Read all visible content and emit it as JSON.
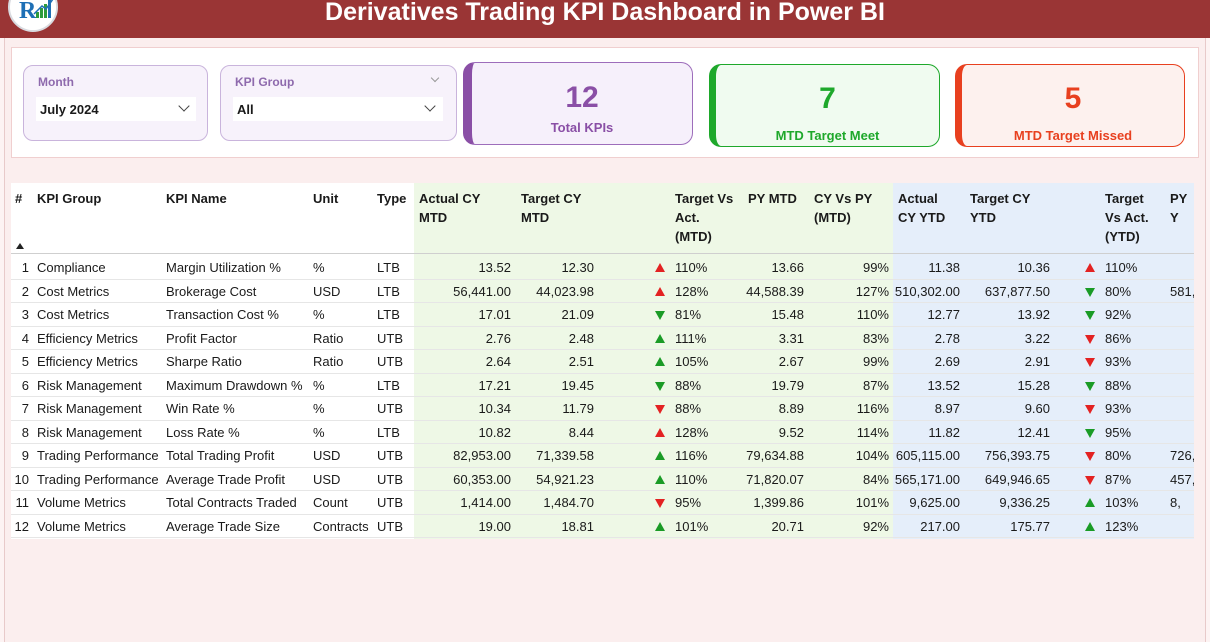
{
  "header": {
    "title": "Derivatives Trading KPI Dashboard in Power BI",
    "logo_icon": "brand-logo-icon"
  },
  "slicers": {
    "month": {
      "label": "Month",
      "value": "July 2024"
    },
    "kpi_group": {
      "label": "KPI Group",
      "value": "All"
    }
  },
  "cards": [
    {
      "value": "12",
      "label": "Total KPIs",
      "color": "#8a4fa6"
    },
    {
      "value": "7",
      "label": "MTD Target Meet",
      "color": "#1ea82b"
    },
    {
      "value": "5",
      "label": "MTD Target Missed",
      "color": "#e8401f"
    }
  ],
  "colors": {
    "title_bar": "#9a3535",
    "mtd_band": "#eef8e6",
    "ytd_band": "#e5eefa",
    "up_red": "#e32222",
    "down_green": "#1a9b26",
    "up_green": "#1a9b26",
    "down_red": "#e32222"
  },
  "table": {
    "headers": {
      "idx": "#",
      "group": "KPI Group",
      "name": "KPI Name",
      "unit": "Unit",
      "type": "Type",
      "actual_mtd": [
        "Actual CY",
        "MTD"
      ],
      "target_mtd": [
        "Target CY",
        "MTD"
      ],
      "tva_mtd": [
        "Target Vs",
        "Act.",
        "(MTD)"
      ],
      "py_mtd": "PY MTD",
      "cyvpy_mtd": [
        "CY Vs PY",
        "(MTD)"
      ],
      "actual_ytd": [
        "Actual",
        "CY YTD"
      ],
      "target_ytd": [
        "Target CY",
        "YTD"
      ],
      "tva_ytd": [
        "Target",
        "Vs Act.",
        "(YTD)"
      ],
      "py_ytd": "PY Y"
    },
    "rows": [
      {
        "idx": "1",
        "group": "Compliance",
        "name": "Margin Utilization %",
        "unit": "%",
        "type": "LTB",
        "actual_mtd": "13.52",
        "target_mtd": "12.30",
        "mtd_icon": "up-red",
        "tva_mtd": "110%",
        "py_mtd": "13.66",
        "cyvpy_mtd": "99%",
        "actual_ytd": "11.38",
        "target_ytd": "10.36",
        "ytd_icon": "up-red",
        "tva_ytd": "110%",
        "py_ytd": ""
      },
      {
        "idx": "2",
        "group": "Cost Metrics",
        "name": "Brokerage Cost",
        "unit": "USD",
        "type": "LTB",
        "actual_mtd": "56,441.00",
        "target_mtd": "44,023.98",
        "mtd_icon": "up-red",
        "tva_mtd": "128%",
        "py_mtd": "44,588.39",
        "cyvpy_mtd": "127%",
        "actual_ytd": "510,302.00",
        "target_ytd": "637,877.50",
        "ytd_icon": "down-green",
        "tva_ytd": "80%",
        "py_ytd": "581,"
      },
      {
        "idx": "3",
        "group": "Cost Metrics",
        "name": "Transaction Cost %",
        "unit": "%",
        "type": "LTB",
        "actual_mtd": "17.01",
        "target_mtd": "21.09",
        "mtd_icon": "down-green",
        "tva_mtd": "81%",
        "py_mtd": "15.48",
        "cyvpy_mtd": "110%",
        "actual_ytd": "12.77",
        "target_ytd": "13.92",
        "ytd_icon": "down-green",
        "tva_ytd": "92%",
        "py_ytd": ""
      },
      {
        "idx": "4",
        "group": "Efficiency Metrics",
        "name": "Profit Factor",
        "unit": "Ratio",
        "type": "UTB",
        "actual_mtd": "2.76",
        "target_mtd": "2.48",
        "mtd_icon": "up-green",
        "tva_mtd": "111%",
        "py_mtd": "3.31",
        "cyvpy_mtd": "83%",
        "actual_ytd": "2.78",
        "target_ytd": "3.22",
        "ytd_icon": "down-red",
        "tva_ytd": "86%",
        "py_ytd": ""
      },
      {
        "idx": "5",
        "group": "Efficiency Metrics",
        "name": "Sharpe Ratio",
        "unit": "Ratio",
        "type": "UTB",
        "actual_mtd": "2.64",
        "target_mtd": "2.51",
        "mtd_icon": "up-green",
        "tva_mtd": "105%",
        "py_mtd": "2.67",
        "cyvpy_mtd": "99%",
        "actual_ytd": "2.69",
        "target_ytd": "2.91",
        "ytd_icon": "down-red",
        "tva_ytd": "93%",
        "py_ytd": ""
      },
      {
        "idx": "6",
        "group": "Risk Management",
        "name": "Maximum Drawdown %",
        "unit": "%",
        "type": "LTB",
        "actual_mtd": "17.21",
        "target_mtd": "19.45",
        "mtd_icon": "down-green",
        "tva_mtd": "88%",
        "py_mtd": "19.79",
        "cyvpy_mtd": "87%",
        "actual_ytd": "13.52",
        "target_ytd": "15.28",
        "ytd_icon": "down-green",
        "tva_ytd": "88%",
        "py_ytd": ""
      },
      {
        "idx": "7",
        "group": "Risk Management",
        "name": "Win Rate %",
        "unit": "%",
        "type": "UTB",
        "actual_mtd": "10.34",
        "target_mtd": "11.79",
        "mtd_icon": "down-red",
        "tva_mtd": "88%",
        "py_mtd": "8.89",
        "cyvpy_mtd": "116%",
        "actual_ytd": "8.97",
        "target_ytd": "9.60",
        "ytd_icon": "down-red",
        "tva_ytd": "93%",
        "py_ytd": ""
      },
      {
        "idx": "8",
        "group": "Risk Management",
        "name": "Loss Rate %",
        "unit": "%",
        "type": "LTB",
        "actual_mtd": "10.82",
        "target_mtd": "8.44",
        "mtd_icon": "up-red",
        "tva_mtd": "128%",
        "py_mtd": "9.52",
        "cyvpy_mtd": "114%",
        "actual_ytd": "11.82",
        "target_ytd": "12.41",
        "ytd_icon": "down-green",
        "tva_ytd": "95%",
        "py_ytd": ""
      },
      {
        "idx": "9",
        "group": "Trading Performance",
        "name": "Total Trading Profit",
        "unit": "USD",
        "type": "UTB",
        "actual_mtd": "82,953.00",
        "target_mtd": "71,339.58",
        "mtd_icon": "up-green",
        "tva_mtd": "116%",
        "py_mtd": "79,634.88",
        "cyvpy_mtd": "104%",
        "actual_ytd": "605,115.00",
        "target_ytd": "756,393.75",
        "ytd_icon": "down-red",
        "tva_ytd": "80%",
        "py_ytd": "726,"
      },
      {
        "idx": "10",
        "group": "Trading Performance",
        "name": "Average Trade Profit",
        "unit": "USD",
        "type": "UTB",
        "actual_mtd": "60,353.00",
        "target_mtd": "54,921.23",
        "mtd_icon": "up-green",
        "tva_mtd": "110%",
        "py_mtd": "71,820.07",
        "cyvpy_mtd": "84%",
        "actual_ytd": "565,171.00",
        "target_ytd": "649,946.65",
        "ytd_icon": "down-red",
        "tva_ytd": "87%",
        "py_ytd": "457,"
      },
      {
        "idx": "11",
        "group": "Volume Metrics",
        "name": "Total Contracts Traded",
        "unit": "Count",
        "type": "UTB",
        "actual_mtd": "1,414.00",
        "target_mtd": "1,484.70",
        "mtd_icon": "down-red",
        "tva_mtd": "95%",
        "py_mtd": "1,399.86",
        "cyvpy_mtd": "101%",
        "actual_ytd": "9,625.00",
        "target_ytd": "9,336.25",
        "ytd_icon": "up-green",
        "tva_ytd": "103%",
        "py_ytd": "8,"
      },
      {
        "idx": "12",
        "group": "Volume Metrics",
        "name": "Average Trade Size",
        "unit": "Contracts",
        "type": "UTB",
        "actual_mtd": "19.00",
        "target_mtd": "18.81",
        "mtd_icon": "up-green",
        "tva_mtd": "101%",
        "py_mtd": "20.71",
        "cyvpy_mtd": "92%",
        "actual_ytd": "217.00",
        "target_ytd": "175.77",
        "ytd_icon": "up-green",
        "tva_ytd": "123%",
        "py_ytd": ""
      }
    ]
  }
}
